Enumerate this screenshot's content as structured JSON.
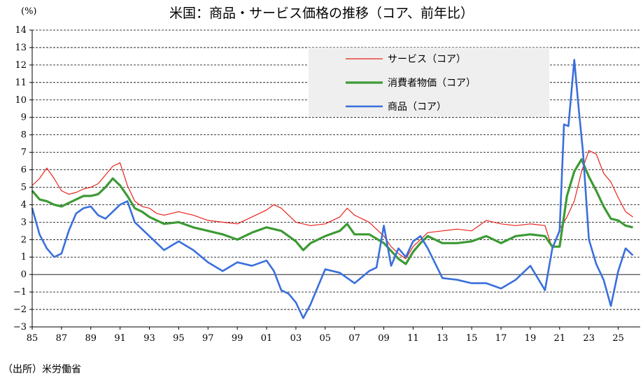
{
  "title": "米国：商品・サービス価格の推移（コア、前年比）",
  "y_unit": "(%)",
  "source": "（出所）米労働省",
  "chart_data": {
    "type": "line",
    "title": "米国：商品・サービス価格の推移（コア、前年比）",
    "ylabel": "(%)",
    "xlabel": "",
    "ylim": [
      -3,
      14
    ],
    "xlim": [
      1985,
      2026.5
    ],
    "y_ticks": [
      14,
      13,
      12,
      11,
      10,
      9,
      8,
      7,
      6,
      5,
      4,
      3,
      2,
      1,
      0,
      -1,
      -2,
      -3
    ],
    "x_tick_labels": [
      "85",
      "87",
      "89",
      "91",
      "93",
      "95",
      "97",
      "99",
      "01",
      "03",
      "05",
      "07",
      "09",
      "11",
      "13",
      "15",
      "17",
      "19",
      "21",
      "23",
      "25"
    ],
    "x_tick_years": [
      1985,
      1987,
      1989,
      1991,
      1993,
      1995,
      1997,
      1999,
      2001,
      2003,
      2005,
      2007,
      2009,
      2011,
      2013,
      2015,
      2017,
      2019,
      2021,
      2023,
      2025
    ],
    "grid": "horizontal dashed",
    "legend_position": "top-right",
    "series": [
      {
        "name": "サービス（コア）",
        "color": "#e8231b",
        "x": [
          1985,
          1985.5,
          1986,
          1986.5,
          1987,
          1987.5,
          1988,
          1988.5,
          1989,
          1989.5,
          1990,
          1990.5,
          1991,
          1991.5,
          1992,
          1992.5,
          1993,
          1993.5,
          1994,
          1995,
          1996,
          1997,
          1998,
          1999,
          2000,
          2001,
          2001.5,
          2002,
          2002.5,
          2003,
          2004,
          2005,
          2006,
          2006.5,
          2007,
          2008,
          2009,
          2009.5,
          2010,
          2010.5,
          2011,
          2012,
          2013,
          2014,
          2015,
          2016,
          2017,
          2018,
          2019,
          2020,
          2020.5,
          2021,
          2021.5,
          2022,
          2022.5,
          2023,
          2023.5,
          2024,
          2024.5,
          2025,
          2025.5,
          2026
        ],
        "values": [
          5.1,
          5.5,
          6.1,
          5.5,
          4.8,
          4.6,
          4.7,
          4.9,
          5.0,
          5.2,
          5.7,
          6.2,
          6.4,
          5.1,
          4.2,
          3.9,
          3.8,
          3.5,
          3.4,
          3.6,
          3.4,
          3.1,
          3.0,
          2.9,
          3.3,
          3.7,
          4.0,
          3.8,
          3.4,
          3.0,
          2.8,
          2.9,
          3.3,
          3.8,
          3.4,
          3.0,
          2.2,
          1.6,
          1.2,
          0.9,
          1.6,
          2.4,
          2.5,
          2.6,
          2.5,
          3.1,
          2.9,
          2.8,
          2.9,
          2.8,
          1.5,
          2.6,
          3.3,
          4.2,
          5.9,
          7.1,
          6.9,
          5.8,
          5.3,
          4.4,
          3.6,
          3.3
        ]
      },
      {
        "name": "消費者物価（コア）",
        "color": "#3c9a34",
        "x": [
          1985,
          1985.5,
          1986,
          1986.5,
          1987,
          1987.5,
          1988,
          1988.5,
          1989,
          1989.5,
          1990,
          1990.5,
          1991,
          1991.5,
          1992,
          1992.5,
          1993,
          1994,
          1995,
          1996,
          1997,
          1998,
          1999,
          2000,
          2001,
          2002,
          2003,
          2003.5,
          2004,
          2005,
          2006,
          2006.5,
          2007,
          2008,
          2009,
          2010,
          2010.5,
          2011,
          2011.5,
          2012,
          2013,
          2014,
          2015,
          2016,
          2017,
          2018,
          2019,
          2020,
          2020.5,
          2021,
          2021.5,
          2022,
          2022.5,
          2023,
          2023.5,
          2024,
          2024.5,
          2025,
          2025.5,
          2026
        ],
        "values": [
          4.8,
          4.3,
          4.2,
          4.0,
          3.9,
          4.1,
          4.3,
          4.5,
          4.5,
          4.6,
          5.0,
          5.5,
          5.1,
          4.5,
          3.8,
          3.6,
          3.3,
          2.9,
          3.0,
          2.7,
          2.5,
          2.3,
          2.0,
          2.4,
          2.7,
          2.5,
          1.9,
          1.4,
          1.8,
          2.2,
          2.5,
          2.9,
          2.3,
          2.3,
          1.8,
          0.9,
          0.6,
          1.3,
          1.8,
          2.2,
          1.8,
          1.8,
          1.9,
          2.2,
          1.8,
          2.2,
          2.3,
          2.2,
          1.6,
          1.6,
          4.5,
          5.9,
          6.6,
          5.6,
          4.8,
          3.9,
          3.2,
          3.1,
          2.8,
          2.7
        ]
      },
      {
        "name": "商品（コア）",
        "color": "#3a6fdc",
        "x": [
          1985,
          1985.5,
          1986,
          1986.5,
          1987,
          1987.5,
          1988,
          1988.5,
          1989,
          1989.5,
          1990,
          1990.5,
          1991,
          1991.5,
          1992,
          1992.5,
          1993,
          1994,
          1995,
          1996,
          1997,
          1998,
          1999,
          2000,
          2001,
          2001.5,
          2002,
          2002.5,
          2003,
          2003.5,
          2004,
          2004.5,
          2005,
          2006,
          2007,
          2008,
          2008.5,
          2009,
          2009.5,
          2010,
          2010.5,
          2011,
          2011.5,
          2012,
          2013,
          2014,
          2015,
          2016,
          2017,
          2018,
          2019,
          2020,
          2020.5,
          2021,
          2021.3,
          2021.6,
          2022,
          2022.3,
          2022.6,
          2023,
          2023.5,
          2024,
          2024.5,
          2025,
          2025.5,
          2026
        ],
        "values": [
          3.8,
          2.3,
          1.5,
          1.0,
          1.2,
          2.5,
          3.5,
          3.8,
          3.9,
          3.4,
          3.2,
          3.6,
          4.0,
          4.2,
          3.0,
          2.6,
          2.2,
          1.4,
          1.9,
          1.4,
          0.7,
          0.2,
          0.7,
          0.5,
          0.8,
          0.2,
          -0.9,
          -1.1,
          -1.6,
          -2.5,
          -1.7,
          -0.7,
          0.3,
          0.1,
          -0.5,
          0.2,
          0.4,
          2.8,
          0.5,
          1.5,
          1.0,
          1.9,
          2.2,
          1.5,
          -0.2,
          -0.3,
          -0.5,
          -0.5,
          -0.8,
          -0.3,
          0.5,
          -0.9,
          1.5,
          2.5,
          8.6,
          8.5,
          12.3,
          9.5,
          7.0,
          2.0,
          0.6,
          -0.3,
          -1.8,
          0.2,
          1.5,
          1.1
        ]
      }
    ]
  }
}
